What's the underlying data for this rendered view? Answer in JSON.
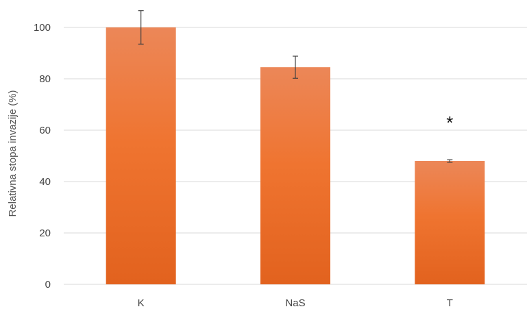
{
  "chart_data": {
    "type": "bar",
    "title": "",
    "xlabel": "",
    "ylabel": "Relativna stopa invazije (%)",
    "categories": [
      "K",
      "NaS",
      "T"
    ],
    "values": [
      100,
      84.5,
      48
    ],
    "error": [
      6.5,
      4.3,
      0.5
    ],
    "annotations": [
      {
        "category": "T",
        "text": "*"
      }
    ],
    "ylim": [
      0,
      100
    ],
    "yticks": [
      0,
      20,
      40,
      60,
      80,
      100
    ],
    "grid": true,
    "legend": "none",
    "colors": {
      "bar_top": "#ec8758",
      "bar_mid": "#ef7430",
      "bar_bottom": "#e2621e",
      "grid": "#d9d9d9",
      "error_bar": "#404040"
    }
  }
}
